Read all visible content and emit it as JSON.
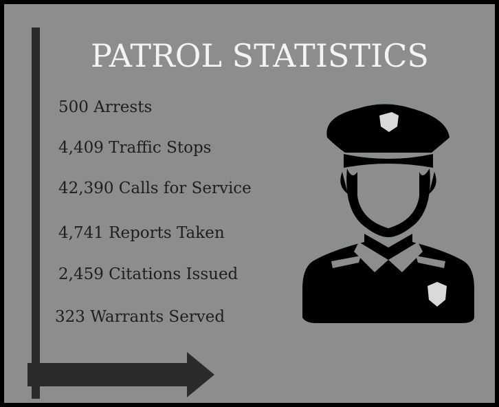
{
  "title": "PATROL STATISTICS",
  "stats": [
    "500 Arrests",
    "4,409 Traffic Stops",
    "42,390 Calls for Service",
    "4,741 Reports Taken",
    "2,459 Citations Issued",
    "323 Warrants Served"
  ]
}
